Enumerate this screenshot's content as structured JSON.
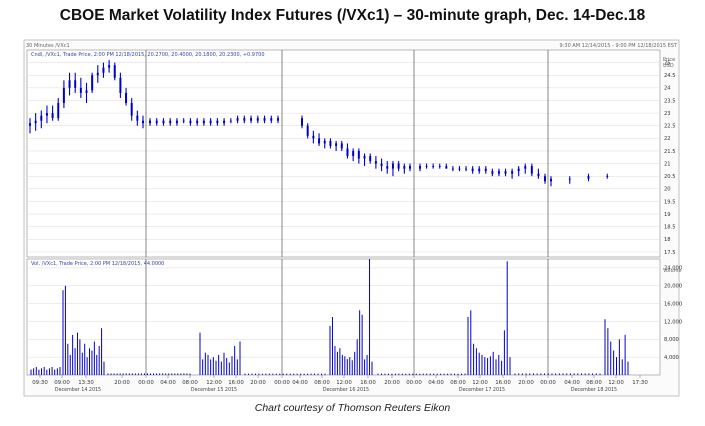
{
  "title": "CBOE Market Volatility Index Futures (/VXc1) – 30-minute graph, Dec. 14-Dec.18",
  "caption": "Chart courtesy of Thomson Reuters Eikon",
  "header_left": "30 Minutes /VXc1",
  "header_right": "9:30 AM 12/14/2015 - 9:00 PM 12/18/2015 EST",
  "price_legend": "Cndl, /VXc1, Trade Price, 2:00 PM 12/18/2015, 20.2700, 20.4000, 20.1800, 20.2300, +0.9700",
  "volume_legend": "Vol, /VXc1, Trade Price, 2:00 PM 12/18/2015, 44.0000",
  "price_unit_lines": [
    "Price",
    "USD"
  ],
  "volume_unit": "Volume",
  "colors": {
    "bar": "#0000cc",
    "grid": "#dadada",
    "divider": "#555555",
    "frame": "#b5b5b5",
    "header": "#3344aa"
  },
  "chart_data": [
    {
      "type": "line",
      "subtype": "ohlc-candlestick",
      "interval": "30-minute",
      "ylim": [
        17.3,
        25.5
      ],
      "yticks": [
        17.5,
        18,
        18.5,
        19,
        19.5,
        20,
        20.5,
        21,
        21.5,
        22,
        22.5,
        23,
        23.5,
        24,
        24.5,
        25
      ],
      "ytick_labels": [
        "17.5",
        "18",
        "18.5",
        "19",
        "19.5",
        "20",
        "20.5",
        "21",
        "21.5",
        "22",
        "22.5",
        "23",
        "23.5",
        "24",
        "24.5",
        "25"
      ],
      "day_boundaries_after_index": [
        20,
        40,
        60,
        80
      ],
      "series": [
        {
          "values": [
            [
              22.5,
              22.8,
              22.2,
              22.6
            ],
            [
              22.6,
              23.0,
              22.3,
              22.7
            ],
            [
              22.7,
              23.1,
              22.4,
              22.9
            ],
            [
              22.9,
              23.3,
              22.6,
              23.0
            ],
            [
              23.0,
              23.3,
              22.7,
              22.8
            ],
            [
              22.8,
              23.6,
              22.7,
              23.4
            ],
            [
              23.4,
              24.3,
              23.2,
              24.0
            ],
            [
              24.0,
              24.6,
              23.7,
              24.3
            ],
            [
              24.3,
              24.6,
              23.8,
              24.0
            ],
            [
              24.0,
              24.4,
              23.6,
              23.8
            ],
            [
              23.8,
              24.2,
              23.4,
              23.9
            ],
            [
              23.9,
              24.6,
              23.8,
              24.5
            ],
            [
              24.5,
              24.9,
              24.2,
              24.6
            ],
            [
              24.6,
              25.0,
              24.4,
              24.8
            ],
            [
              24.8,
              25.1,
              24.6,
              24.9
            ],
            [
              24.9,
              25.0,
              24.3,
              24.4
            ],
            [
              24.4,
              24.6,
              23.6,
              23.8
            ],
            [
              23.8,
              24.0,
              23.3,
              23.4
            ],
            [
              23.4,
              23.6,
              22.7,
              22.9
            ],
            [
              22.9,
              23.1,
              22.5,
              22.7
            ],
            [
              22.7,
              22.9,
              22.4,
              22.6
            ],
            [
              22.6,
              22.8,
              22.5,
              22.7
            ],
            [
              22.7,
              22.8,
              22.5,
              22.6
            ],
            [
              22.6,
              22.8,
              22.5,
              22.7
            ],
            [
              22.7,
              22.8,
              22.5,
              22.6
            ],
            [
              22.6,
              22.8,
              22.5,
              22.7
            ],
            [
              22.7,
              22.8,
              22.6,
              22.7
            ],
            [
              22.7,
              22.8,
              22.5,
              22.6
            ],
            [
              22.6,
              22.8,
              22.5,
              22.7
            ],
            [
              22.7,
              22.8,
              22.5,
              22.6
            ],
            [
              22.6,
              22.8,
              22.5,
              22.7
            ],
            [
              22.7,
              22.8,
              22.5,
              22.6
            ],
            [
              22.6,
              22.8,
              22.5,
              22.7
            ],
            [
              22.7,
              22.8,
              22.6,
              22.7
            ],
            [
              22.7,
              22.9,
              22.6,
              22.8
            ],
            [
              22.8,
              22.9,
              22.6,
              22.7
            ],
            [
              22.7,
              22.9,
              22.6,
              22.8
            ],
            [
              22.8,
              22.9,
              22.6,
              22.7
            ],
            [
              22.7,
              22.9,
              22.6,
              22.8
            ],
            [
              22.8,
              22.9,
              22.6,
              22.7
            ],
            [
              22.7,
              22.9,
              22.6,
              22.8
            ],
            [
              22.8,
              22.9,
              22.4,
              22.5
            ],
            [
              22.5,
              22.6,
              22.0,
              22.1
            ],
            [
              22.1,
              22.3,
              21.8,
              22.0
            ],
            [
              22.0,
              22.2,
              21.7,
              21.8
            ],
            [
              21.8,
              22.0,
              21.6,
              21.9
            ],
            [
              21.9,
              22.0,
              21.6,
              21.7
            ],
            [
              21.7,
              21.9,
              21.5,
              21.8
            ],
            [
              21.8,
              21.9,
              21.5,
              21.6
            ],
            [
              21.6,
              21.8,
              21.2,
              21.3
            ],
            [
              21.3,
              21.6,
              21.1,
              21.5
            ],
            [
              21.5,
              21.6,
              21.0,
              21.2
            ],
            [
              21.2,
              21.4,
              20.9,
              21.3
            ],
            [
              21.3,
              21.4,
              21.0,
              21.1
            ],
            [
              21.1,
              21.3,
              20.8,
              21.0
            ],
            [
              21.0,
              21.2,
              20.7,
              20.9
            ],
            [
              20.9,
              21.1,
              20.6,
              20.8
            ],
            [
              20.8,
              21.1,
              20.5,
              21.0
            ],
            [
              21.0,
              21.1,
              20.7,
              20.8
            ],
            [
              20.8,
              21.0,
              20.6,
              20.9
            ],
            [
              20.9,
              21.0,
              20.7,
              20.8
            ],
            [
              20.8,
              21.0,
              20.7,
              20.9
            ],
            [
              20.9,
              21.0,
              20.8,
              20.9
            ],
            [
              20.9,
              21.0,
              20.8,
              20.9
            ],
            [
              20.9,
              21.0,
              20.8,
              20.9
            ],
            [
              20.9,
              21.0,
              20.8,
              20.8
            ],
            [
              20.8,
              20.9,
              20.7,
              20.8
            ],
            [
              20.8,
              20.9,
              20.7,
              20.8
            ],
            [
              20.8,
              20.9,
              20.7,
              20.8
            ],
            [
              20.8,
              20.9,
              20.6,
              20.7
            ],
            [
              20.7,
              20.9,
              20.6,
              20.8
            ],
            [
              20.8,
              20.9,
              20.6,
              20.7
            ],
            [
              20.7,
              20.8,
              20.5,
              20.6
            ],
            [
              20.6,
              20.8,
              20.5,
              20.7
            ],
            [
              20.7,
              20.8,
              20.5,
              20.6
            ],
            [
              20.6,
              20.8,
              20.4,
              20.7
            ],
            [
              20.7,
              20.9,
              20.5,
              20.8
            ],
            [
              20.8,
              21.0,
              20.6,
              20.9
            ],
            [
              20.9,
              21.0,
              20.5,
              20.6
            ],
            [
              20.6,
              20.8,
              20.4,
              20.5
            ],
            [
              20.5,
              20.6,
              20.2,
              20.3
            ],
            [
              20.3,
              20.5,
              20.1,
              20.4
            ],
            [
              20.4,
              20.5,
              20.2,
              20.4
            ],
            [
              20.4,
              20.6,
              20.3,
              20.5
            ],
            [
              20.5,
              20.6,
              20.4,
              20.5
            ]
          ]
        }
      ]
    }
  ]
}
